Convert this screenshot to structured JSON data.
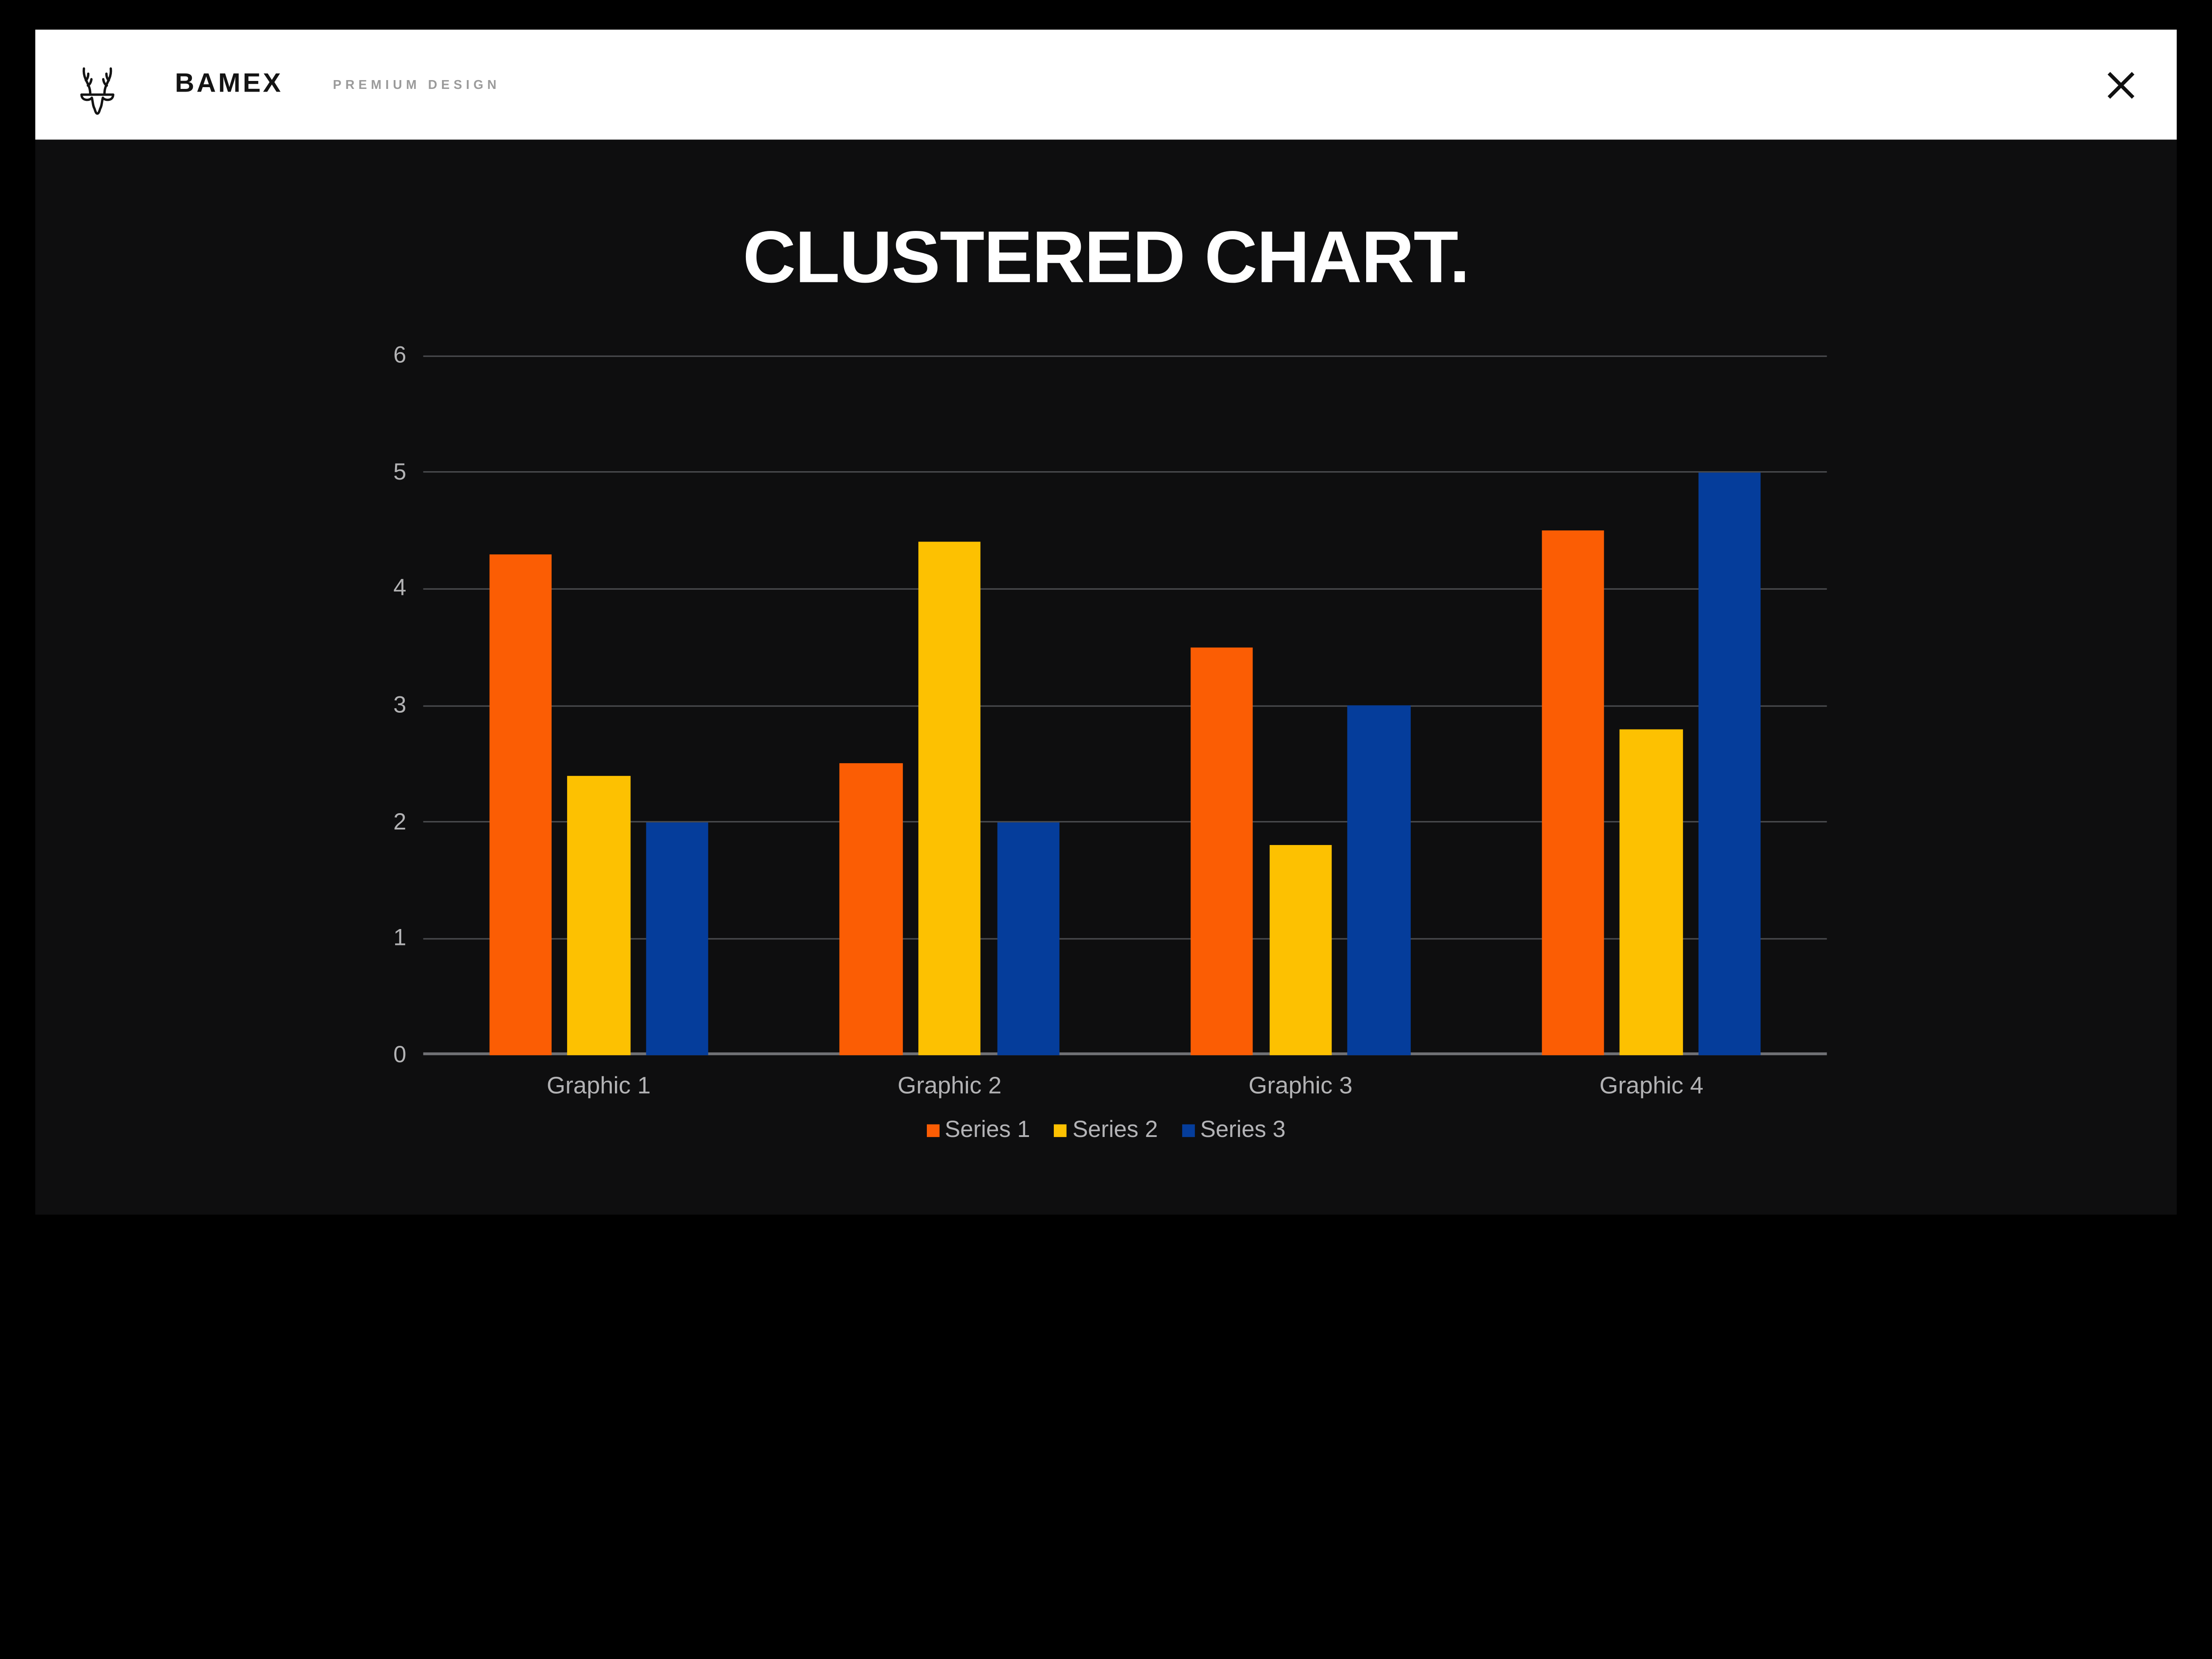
{
  "header": {
    "brand": "BAMEX",
    "tagline": "PREMIUM DESIGN",
    "logo_icon": "deer-antlers-icon",
    "close_icon": "close-x-icon"
  },
  "slide": {
    "title": "CLUSTERED CHART."
  },
  "chart_data": {
    "type": "bar",
    "title": "CLUSTERED CHART.",
    "categories": [
      "Graphic 1",
      "Graphic 2",
      "Graphic 3",
      "Graphic 4"
    ],
    "series": [
      {
        "name": "Series 1",
        "color": "#FB5D04",
        "values": [
          4.3,
          2.5,
          3.5,
          4.5
        ]
      },
      {
        "name": "Series 2",
        "color": "#FDC101",
        "values": [
          2.4,
          4.4,
          1.8,
          2.8
        ]
      },
      {
        "name": "Series 3",
        "color": "#053D9B",
        "values": [
          2.0,
          2.0,
          3.0,
          5.0
        ]
      }
    ],
    "xlabel": "",
    "ylabel": "",
    "ylim": [
      0,
      6
    ],
    "yticks": [
      0,
      1,
      2,
      3,
      4,
      5,
      6
    ],
    "grid": true,
    "legend_position": "bottom"
  },
  "colors": {
    "slide_background": "#0e0e0f",
    "outer_frame": "#000000",
    "header_background": "#ffffff",
    "title_text": "#ffffff",
    "gridline": "#4a4b4e",
    "axis_baseline": "#707175",
    "tick_text": "#b2b2b4",
    "brand_text": "#141414",
    "tagline_text": "#9b9b9b"
  }
}
